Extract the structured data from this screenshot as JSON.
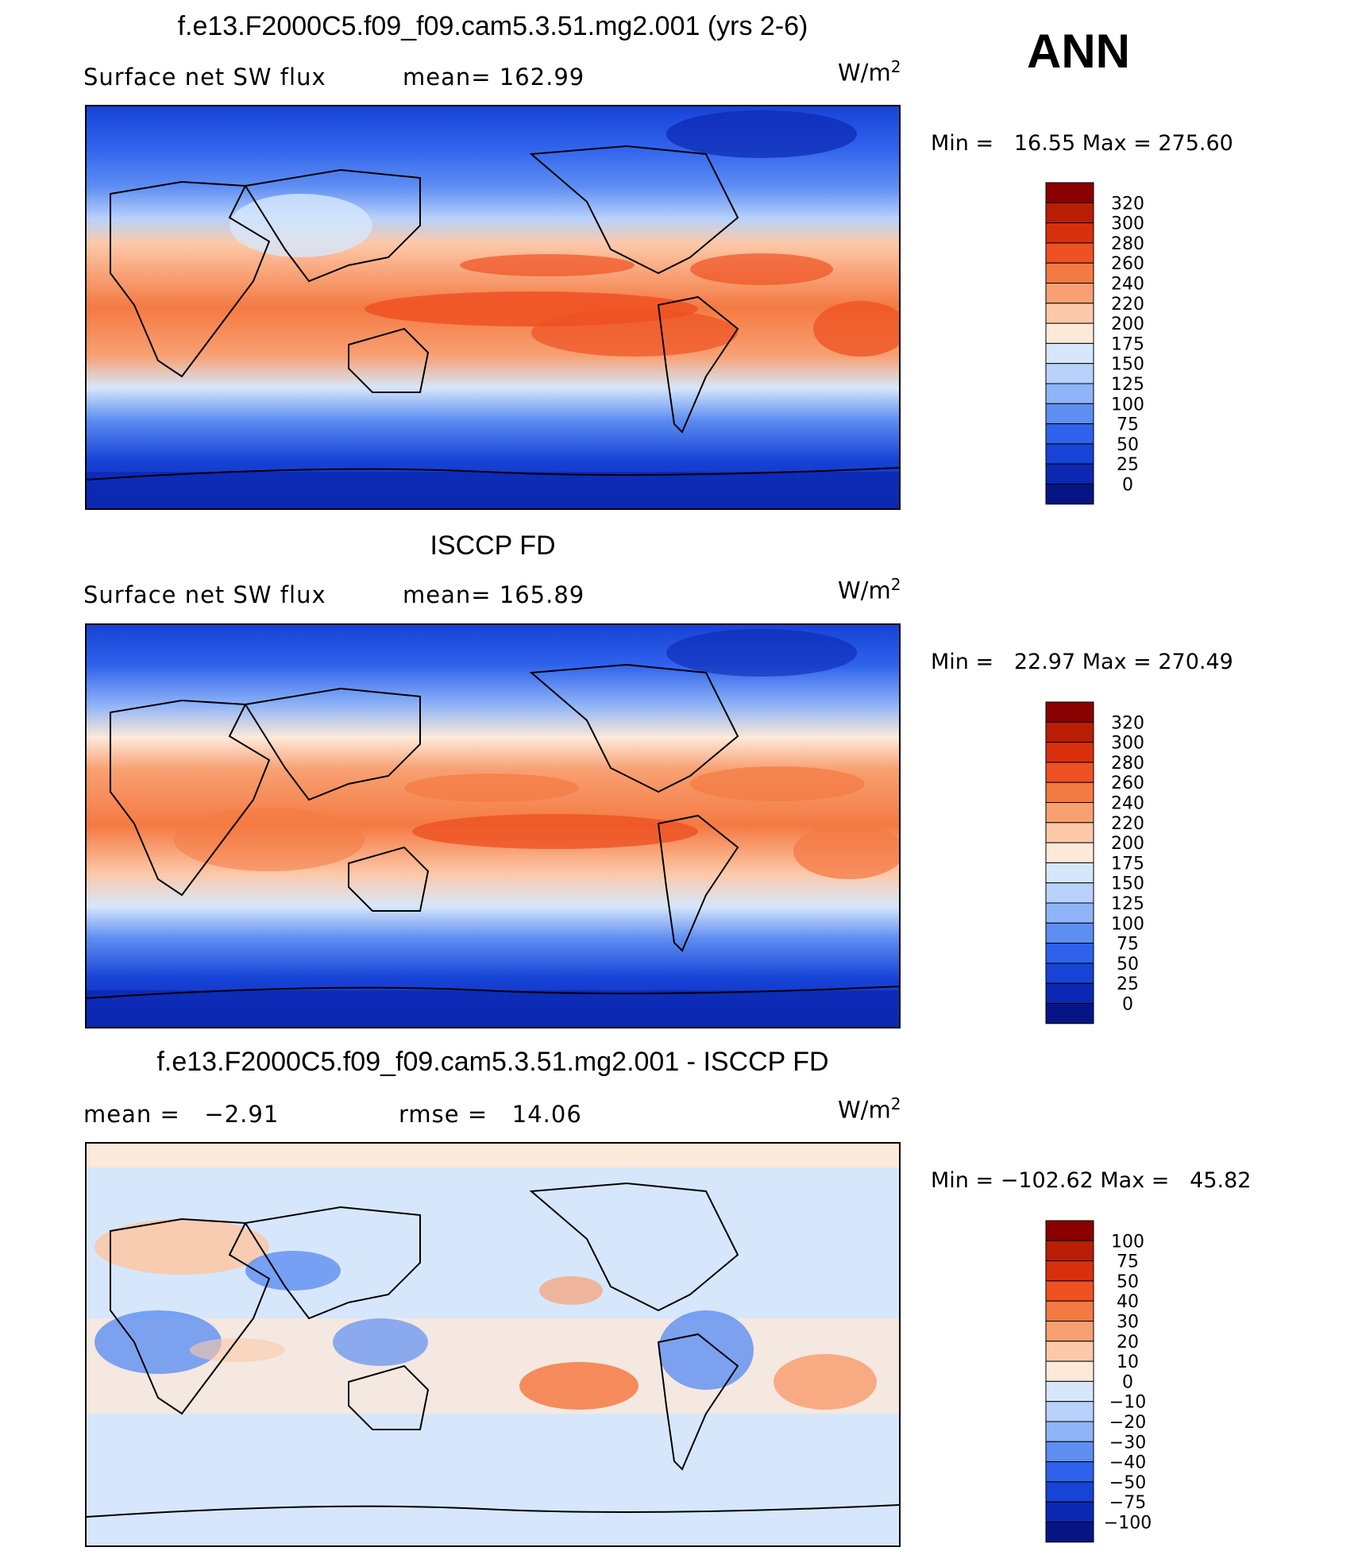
{
  "season": "ANN",
  "units_label": "W/m",
  "units_sup": "2",
  "panels": [
    {
      "title": "f.e13.F2000C5.f09_f09.cam5.3.51.mg2.001 (yrs 2-6)",
      "left_text": "Surface net SW flux",
      "stat_text": "mean= 162.99",
      "minmax": "Min =   16.55 Max = 275.60"
    },
    {
      "title": "ISCCP FD",
      "left_text": "Surface net SW flux",
      "stat_text": "mean= 165.89",
      "minmax": "Min =   22.97 Max = 270.49"
    },
    {
      "title": "f.e13.F2000C5.f09_f09.cam5.3.51.mg2.001 - ISCCP FD",
      "left_text": "mean =   −2.91",
      "stat_text": "rmse =   14.06",
      "minmax": "Min = −102.62 Max =   45.82"
    }
  ],
  "chart_data": [
    {
      "type": "heatmap",
      "title": "f.e13.F2000C5.f09_f09.cam5.3.51.mg2.001 (yrs 2-6)",
      "variable": "Surface net SW flux",
      "mean": 162.99,
      "min": 16.55,
      "max": 275.6,
      "colorbar_levels": [
        "320",
        "300",
        "280",
        "260",
        "240",
        "220",
        "200",
        "175",
        "150",
        "125",
        "100",
        "75",
        "50",
        "25",
        "0"
      ],
      "colorbar_colors": [
        "#8b0000",
        "#b81e05",
        "#d8300d",
        "#ee5122",
        "#f47a43",
        "#f8a072",
        "#fcc9a9",
        "#fde9d9",
        "#d6e7fb",
        "#b8d2fb",
        "#8fb4f7",
        "#5e8ef2",
        "#2f62ec",
        "#1743d6",
        "#0b28b2",
        "#061585"
      ]
    },
    {
      "type": "heatmap",
      "title": "ISCCP FD",
      "variable": "Surface net SW flux",
      "mean": 165.89,
      "min": 22.97,
      "max": 270.49,
      "colorbar_levels": [
        "320",
        "300",
        "280",
        "260",
        "240",
        "220",
        "200",
        "175",
        "150",
        "125",
        "100",
        "75",
        "50",
        "25",
        "0"
      ],
      "colorbar_colors": [
        "#8b0000",
        "#b81e05",
        "#d8300d",
        "#ee5122",
        "#f47a43",
        "#f8a072",
        "#fcc9a9",
        "#fde9d9",
        "#d6e7fb",
        "#b8d2fb",
        "#8fb4f7",
        "#5e8ef2",
        "#2f62ec",
        "#1743d6",
        "#0b28b2",
        "#061585"
      ]
    },
    {
      "type": "heatmap",
      "title": "f.e13.F2000C5.f09_f09.cam5.3.51.mg2.001 - ISCCP FD",
      "mean": -2.91,
      "rmse": 14.06,
      "min": -102.62,
      "max": 45.82,
      "colorbar_levels": [
        "100",
        "75",
        "50",
        "40",
        "30",
        "20",
        "10",
        "0",
        "−10",
        "−20",
        "−30",
        "−40",
        "−50",
        "−75",
        "−100"
      ],
      "colorbar_colors": [
        "#8b0000",
        "#b81e05",
        "#d8300d",
        "#ee5122",
        "#f47a43",
        "#f8a072",
        "#fcc9a9",
        "#fde9d9",
        "#d6e7fb",
        "#b8d2fb",
        "#8fb4f7",
        "#5e8ef2",
        "#2f62ec",
        "#1743d6",
        "#0b28b2",
        "#061585"
      ]
    }
  ]
}
